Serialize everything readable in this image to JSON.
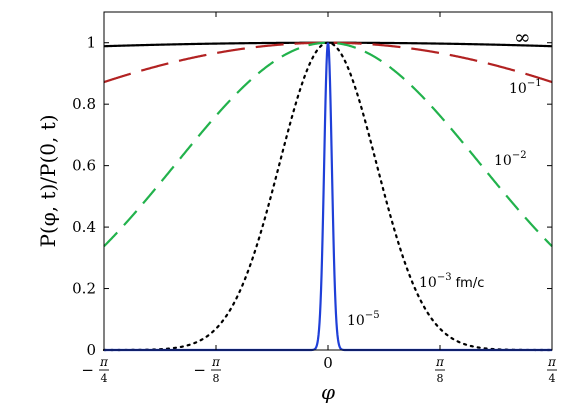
{
  "chart_data": {
    "type": "line",
    "xlabel": "φ",
    "ylabel": "P(φ, t)/P(0, t)",
    "xlim": [
      -0.785398,
      0.785398
    ],
    "ylim": [
      0,
      1.1
    ],
    "grid": false,
    "legend": "none",
    "x_ticks": [
      {
        "value": -0.785398,
        "sign": "−",
        "num": "π",
        "den": "4"
      },
      {
        "value": -0.392699,
        "sign": "−",
        "num": "π",
        "den": "8"
      },
      {
        "value": 0,
        "label": "0"
      },
      {
        "value": 0.392699,
        "sign": "",
        "num": "π",
        "den": "8"
      },
      {
        "value": 0.785398,
        "sign": "",
        "num": "π",
        "den": "4"
      }
    ],
    "y_ticks": [
      {
        "value": 0,
        "label": "0"
      },
      {
        "value": 0.2,
        "label": "0.2"
      },
      {
        "value": 0.4,
        "label": "0.4"
      },
      {
        "value": 0.6,
        "label": "0.6"
      },
      {
        "value": 0.8,
        "label": "0.8"
      },
      {
        "value": 1,
        "label": "1"
      }
    ],
    "series": [
      {
        "label": "∞",
        "color": "#000000",
        "dash": "solid",
        "sigma": 5.2,
        "x": [
          -0.785,
          -0.589,
          -0.393,
          -0.196,
          0,
          0.196,
          0.393,
          0.589,
          0.785
        ],
        "y": [
          0.989,
          0.994,
          0.997,
          0.999,
          1,
          0.999,
          0.997,
          0.994,
          0.989
        ]
      },
      {
        "label": "10",
        "exp": "−1",
        "color": "#b22222",
        "dash": "long",
        "sigma": 1.5,
        "x": [
          -0.785,
          -0.589,
          -0.393,
          -0.196,
          0,
          0.196,
          0.393,
          0.589,
          0.785
        ],
        "y": [
          0.877,
          0.929,
          0.967,
          0.992,
          1,
          0.992,
          0.967,
          0.929,
          0.877
        ]
      },
      {
        "label": "10",
        "exp": "−2",
        "color": "#22b24c",
        "dash": "medium",
        "sigma": 0.533,
        "x": [
          -0.785,
          -0.589,
          -0.393,
          -0.196,
          0,
          0.196,
          0.393,
          0.589,
          0.785
        ],
        "y": [
          0.338,
          0.543,
          0.762,
          0.935,
          1,
          0.935,
          0.762,
          0.543,
          0.338
        ]
      },
      {
        "label": "10",
        "exp": "−3",
        "unit": "fm/c",
        "color": "#000000",
        "dash": "dotted",
        "sigma": 0.17,
        "x": [
          -0.785,
          -0.589,
          -0.393,
          -0.196,
          0,
          0.196,
          0.393,
          0.589,
          0.785
        ],
        "y": [
          0.0,
          0.0024,
          0.069,
          0.513,
          1,
          0.513,
          0.069,
          0.0024,
          0.0
        ]
      },
      {
        "label": "10",
        "exp": "−5",
        "color": "#1f3fd8",
        "dash": "solid",
        "sigma": 0.0135,
        "x": [
          -0.04,
          -0.03,
          -0.02,
          -0.01,
          0,
          0.01,
          0.02,
          0.03,
          0.04
        ],
        "y": [
          0.012,
          0.085,
          0.334,
          0.76,
          1,
          0.76,
          0.334,
          0.085,
          0.012
        ]
      }
    ]
  }
}
